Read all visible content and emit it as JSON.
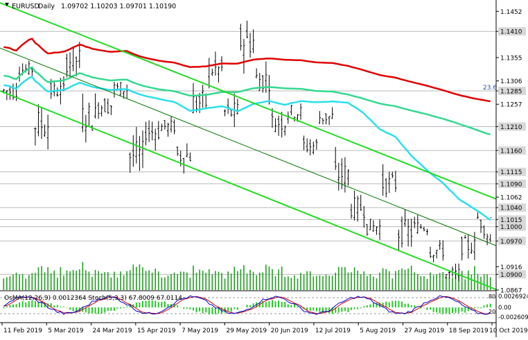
{
  "header": {
    "symbol": "EURUSD",
    "timeframe": "Daily",
    "ohlc": "1.09702 1.10203 1.09701 1.10190"
  },
  "oscillator_label": "OsMA(12,26,9) 0.0012364  Stoch(5,3,3) 67.8009 67.0114",
  "fib_label": "23.6",
  "colors": {
    "candle": "#000000",
    "ma_fast": "#29e0ec",
    "ma_mid": "#33d98f",
    "ma_slow": "#e00000",
    "channel": "#22dd22",
    "mid_channel": "#007700",
    "level_line": "#b9b9b9",
    "volume": "#1ea01e",
    "osma": "#22cc22",
    "stoch_main": "#0000cc",
    "stoch_signal": "#cc0000"
  },
  "chart_data": {
    "type": "candlestick",
    "symbol": "EURUSD",
    "timeframe": "Daily",
    "price_axis_ticks": [
      1.1452,
      1.141,
      1.1355,
      1.1306,
      1.1285,
      1.1257,
      1.121,
      1.116,
      1.1115,
      1.109,
      1.1062,
      1.104,
      1.1015,
      1.1,
      1.097,
      1.0916,
      1.09,
      1.0867
    ],
    "highlighted_levels": [
      1.141,
      1.1285,
      1.121,
      1.116,
      1.1115,
      1.109,
      1.104,
      1.1015,
      1.1,
      1.097,
      1.09
    ],
    "ylim": [
      1.0867,
      1.147
    ],
    "x_tick_labels": [
      "11 Feb 2019",
      "5 Mar 2019",
      "24 Mar 2019",
      "15 Apr 2019",
      "7 May 2019",
      "29 May 2019",
      "20 Jun 2019",
      "12 Jul 2019",
      "5 Aug 2019",
      "27 Aug 2019",
      "18 Sep 2019",
      "10 Oct 2019"
    ],
    "last_close": 1.1019,
    "ohlc_anchors": [
      [
        1.133,
        1.1355,
        1.126,
        1.1285
      ],
      [
        1.1285,
        1.1345,
        1.1275,
        1.133
      ],
      [
        1.133,
        1.136,
        1.118,
        1.1215
      ],
      [
        1.1215,
        1.13,
        1.12,
        1.1285
      ],
      [
        1.1285,
        1.142,
        1.127,
        1.135
      ],
      [
        1.135,
        1.136,
        1.119,
        1.123
      ],
      [
        1.123,
        1.13,
        1.119,
        1.1255
      ],
      [
        1.1255,
        1.132,
        1.123,
        1.129
      ],
      [
        1.129,
        1.13,
        1.113,
        1.115
      ],
      [
        1.115,
        1.123,
        1.112,
        1.12
      ],
      [
        1.12,
        1.125,
        1.117,
        1.121
      ],
      [
        1.121,
        1.124,
        1.112,
        1.115
      ],
      [
        1.115,
        1.13,
        1.114,
        1.126
      ],
      [
        1.126,
        1.135,
        1.123,
        1.133
      ],
      [
        1.133,
        1.134,
        1.121,
        1.124
      ],
      [
        1.124,
        1.142,
        1.123,
        1.139
      ],
      [
        1.139,
        1.141,
        1.127,
        1.131
      ],
      [
        1.131,
        1.132,
        1.12,
        1.122
      ],
      [
        1.122,
        1.128,
        1.119,
        1.124
      ],
      [
        1.124,
        1.125,
        1.115,
        1.117
      ],
      [
        1.117,
        1.124,
        1.115,
        1.123
      ],
      [
        1.123,
        1.124,
        1.108,
        1.111
      ],
      [
        1.111,
        1.113,
        1.101,
        1.104
      ],
      [
        1.104,
        1.107,
        1.098,
        1.1
      ],
      [
        1.1,
        1.111,
        1.099,
        1.109
      ],
      [
        1.109,
        1.11,
        1.096,
        1.099
      ],
      [
        1.099,
        1.104,
        1.096,
        1.1
      ],
      [
        1.1,
        1.101,
        1.092,
        1.095
      ],
      [
        1.095,
        1.096,
        1.088,
        1.09
      ],
      [
        1.09,
        1.099,
        1.089,
        1.096
      ],
      [
        1.096,
        1.102,
        1.095,
        1.1019
      ]
    ]
  }
}
